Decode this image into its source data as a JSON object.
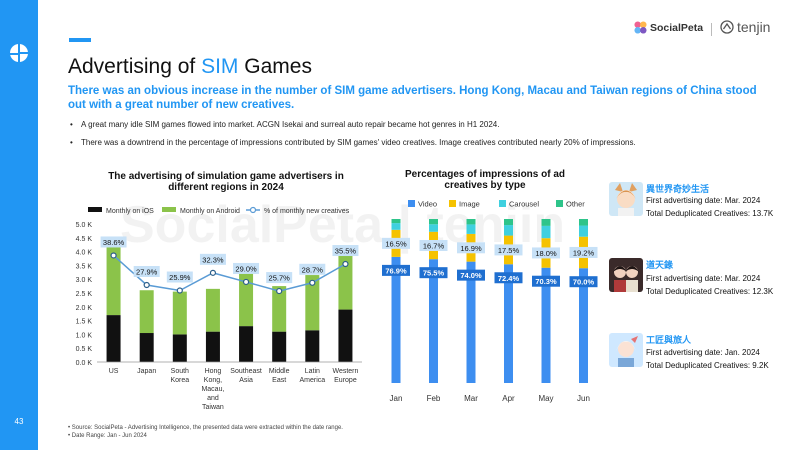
{
  "page": {
    "number": "43",
    "title_prefix": "Advertising of",
    "title_highlight": "SIM",
    "title_suffix": "Games",
    "subtitle": "There was an obvious increase in the number of SIM game advertisers. Hong Kong, Macau and Taiwan regions of China stood out with a great number of new creatives.",
    "bullets": [
      "A great many idle SIM games flowed into market. ACGN Isekai and surreal auto repair became hot genres in H1 2024.",
      "There was a downtrend in the percentage of impressions contributed by SIM games' video creatives. Image creatives contributed nearly 20% of impressions."
    ],
    "footnotes": [
      "Source: SocialPeta - Advertising Intelligence, the presented data were extracted within the date range.",
      "Date Range: Jan - Jun 2024"
    ]
  },
  "brand": {
    "socialpeta": "SocialPeta",
    "tenjin": "tenjin",
    "watermark": "SocialPeta | tenjin"
  },
  "colors": {
    "accent": "#2196f3",
    "ios": "#111111",
    "android": "#8bc34a",
    "line": "#5a9bd5",
    "video": "#3d8ef0",
    "image": "#f5c200",
    "carousel": "#3fd0df",
    "other": "#2ec48a"
  },
  "games": [
    {
      "name": "異世界奇妙生活",
      "first_date": "First advertising date: Mar. 2024",
      "creatives": "Total Deduplicated Creatives: 13.7K",
      "icon": "anime-girl-fox-ears-icon"
    },
    {
      "name": "道天錄",
      "first_date": "First advertising date: Mar. 2024",
      "creatives": "Total Deduplicated Creatives: 12.3K",
      "icon": "xianxia-characters-icon"
    },
    {
      "name": "工匠與旅人",
      "first_date": "First advertising date: Jan. 2024",
      "creatives": "Total Deduplicated Creatives: 9.2K",
      "icon": "anime-girl-white-hair-icon"
    }
  ],
  "chart_data": [
    {
      "type": "bar",
      "stacked": true,
      "title": "The advertising of simulation game advertisers in different regions in 2024",
      "categories": [
        "US",
        "Japan",
        "South Korea",
        "Hong Kong, Macau, and Taiwan",
        "Southeast Asia",
        "Middle East",
        "Latin America",
        "Western Europe"
      ],
      "category_lines": [
        [
          "US"
        ],
        [
          "Japan"
        ],
        [
          "South",
          "Korea"
        ],
        [
          "Hong",
          "Kong,",
          "Macau,",
          "and",
          "Taiwan"
        ],
        [
          "Southeast",
          "Asia"
        ],
        [
          "Middle",
          "East"
        ],
        [
          "Latin",
          "America"
        ],
        [
          "Western",
          "Europe"
        ]
      ],
      "series": [
        {
          "name": "Monthly on iOS",
          "values": [
            1700,
            1050,
            1000,
            1100,
            1300,
            1100,
            1150,
            1900
          ]
        },
        {
          "name": "Monthly on Android",
          "values": [
            2700,
            1550,
            1550,
            1550,
            2050,
            1650,
            2000,
            2100
          ]
        }
      ],
      "line_series": {
        "name": "% of monthly new creatives",
        "values": [
          38.6,
          27.9,
          25.9,
          32.3,
          29.0,
          25.7,
          28.7,
          35.5
        ],
        "labels": [
          "38.6%",
          "27.9%",
          "25.9%",
          "32.3%",
          "29.0%",
          "25.7%",
          "28.7%",
          "35.5%"
        ],
        "ylim": [
          0,
          50
        ]
      },
      "ylim": [
        0,
        5000
      ],
      "yticks": [
        "0.0 K",
        "0.5 K",
        "1.0 K",
        "1.5 K",
        "2.0 K",
        "2.5 K",
        "3.0 K",
        "3.5 K",
        "4.0 K",
        "4.5 K",
        "5.0 K"
      ]
    },
    {
      "type": "bar",
      "stacked": true,
      "percent": true,
      "title": "Percentages of impressions of ad creatives by type",
      "categories": [
        "Jan",
        "Feb",
        "Mar",
        "Apr",
        "May",
        "Jun"
      ],
      "series": [
        {
          "name": "Video",
          "values": [
            76.9,
            75.5,
            74.0,
            72.4,
            70.3,
            70.0
          ],
          "labels": [
            "76.9%",
            "75.5%",
            "74.0%",
            "72.4%",
            "70.3%",
            "70.0%"
          ]
        },
        {
          "name": "Image",
          "values": [
            16.5,
            16.7,
            16.9,
            17.5,
            18.0,
            19.2
          ],
          "labels": [
            "16.5%",
            "16.7%",
            "16.9%",
            "17.5%",
            "18.0%",
            "19.2%"
          ]
        },
        {
          "name": "Carousel",
          "values": [
            4.1,
            4.6,
            5.8,
            6.4,
            7.5,
            6.8
          ]
        },
        {
          "name": "Other",
          "values": [
            2.5,
            3.2,
            3.3,
            3.7,
            4.2,
            4.0
          ]
        }
      ],
      "ylim": [
        0,
        100
      ]
    }
  ]
}
